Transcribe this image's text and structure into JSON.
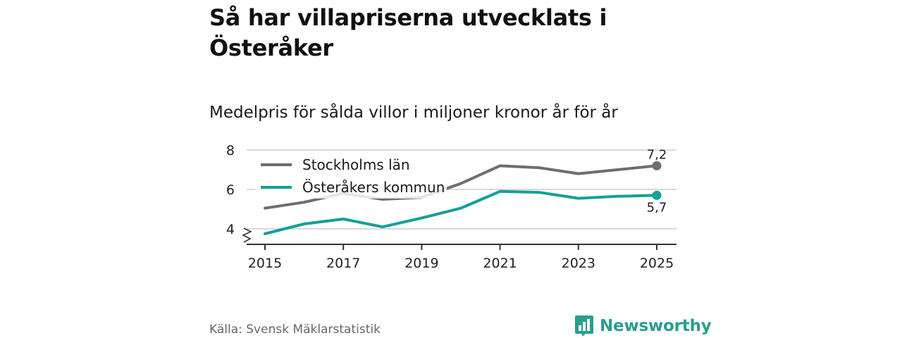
{
  "title": "Så har villapriserna utvecklats i Österåker",
  "subtitle": "Medelpris för sålda villor i miljoner kronor år för år",
  "source": "Källa: Svensk Mäklarstatistik",
  "brand": {
    "name": "Newsworthy",
    "icon": "newsworthy-logo-icon",
    "color": "#2a9d8f"
  },
  "chart_data": {
    "type": "line",
    "x": [
      2015,
      2016,
      2017,
      2018,
      2019,
      2020,
      2021,
      2022,
      2023,
      2024,
      2025
    ],
    "x_ticks": [
      "2015",
      "2017",
      "2019",
      "2021",
      "2023",
      "2025"
    ],
    "y_ticks": [
      "4",
      "6",
      "8"
    ],
    "ylim": [
      3.5,
      8.3
    ],
    "axis_break": true,
    "grid": true,
    "legend_position": "top-left",
    "series": [
      {
        "name": "Stockholms län",
        "color": "#6e6d73",
        "values": [
          5.05,
          5.35,
          5.8,
          5.5,
          5.6,
          6.3,
          7.2,
          7.1,
          6.8,
          7.0,
          7.2
        ],
        "end_label": "7,2"
      },
      {
        "name": "Österåkers kommun",
        "color": "#169e98",
        "values": [
          3.75,
          4.25,
          4.5,
          4.1,
          4.55,
          5.05,
          5.9,
          5.85,
          5.55,
          5.65,
          5.7
        ],
        "end_label": "5,7"
      }
    ]
  }
}
